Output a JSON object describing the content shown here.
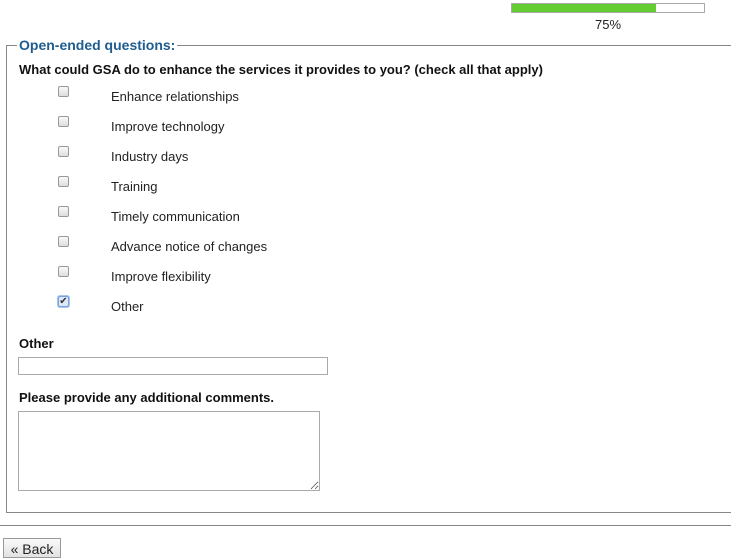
{
  "progress": {
    "percent": 75,
    "label": "75%",
    "fill_color": "#66cc33"
  },
  "section": {
    "legend": "Open-ended questions:"
  },
  "question": "What could GSA do to enhance the services it provides to you? (check all that apply)",
  "options": [
    {
      "label": "Enhance relationships",
      "checked": false
    },
    {
      "label": "Improve technology",
      "checked": false
    },
    {
      "label": "Industry days",
      "checked": false
    },
    {
      "label": "Training",
      "checked": false
    },
    {
      "label": "Timely communication",
      "checked": false
    },
    {
      "label": "Advance notice of changes",
      "checked": false
    },
    {
      "label": "Improve flexibility",
      "checked": false
    },
    {
      "label": "Other",
      "checked": true
    }
  ],
  "other": {
    "label": "Other",
    "value": ""
  },
  "comments": {
    "label": "Please provide any additional comments.",
    "value": ""
  },
  "back_label": "« Back"
}
